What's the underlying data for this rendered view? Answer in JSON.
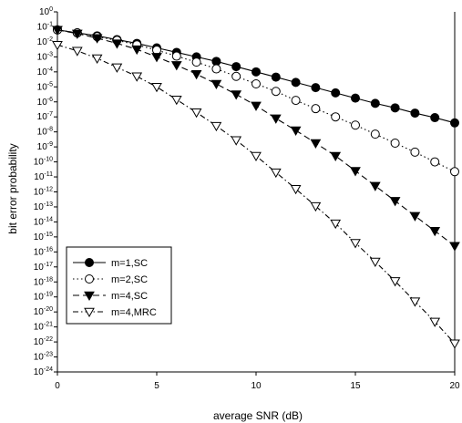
{
  "chart_data": {
    "type": "line",
    "title": "",
    "xlabel": "average SNR (dB)",
    "ylabel": "bit error probability",
    "xlim": [
      0,
      20
    ],
    "ylim": [
      -24,
      0
    ],
    "y_scale": "log",
    "grid": false,
    "legend_position": "bottom-left",
    "x": [
      0,
      1,
      2,
      3,
      4,
      5,
      6,
      7,
      8,
      9,
      10,
      11,
      12,
      13,
      14,
      15,
      16,
      17,
      18,
      19,
      20
    ],
    "x_ticks": [
      "0",
      "5",
      "10",
      "15",
      "20"
    ],
    "y_tick_exponents": [
      0,
      -1,
      -2,
      -3,
      -4,
      -5,
      -6,
      -7,
      -8,
      -9,
      -10,
      -11,
      -12,
      -13,
      -14,
      -15,
      -16,
      -17,
      -18,
      -19,
      -20,
      -21,
      -22,
      -23,
      -24
    ],
    "series": [
      {
        "name": "m=1,SC",
        "marker": "filled-circle",
        "line": "solid",
        "log10_values": [
          -1.2,
          -1.4,
          -1.6,
          -1.85,
          -2.1,
          -2.4,
          -2.7,
          -3.0,
          -3.3,
          -3.65,
          -4.0,
          -4.35,
          -4.7,
          -5.05,
          -5.4,
          -5.75,
          -6.1,
          -6.4,
          -6.75,
          -7.05,
          -7.4
        ]
      },
      {
        "name": "m=2,SC",
        "marker": "open-circle",
        "line": "dotted",
        "log10_values": [
          -1.2,
          -1.4,
          -1.65,
          -1.9,
          -2.2,
          -2.55,
          -2.95,
          -3.35,
          -3.8,
          -4.3,
          -4.8,
          -5.3,
          -5.9,
          -6.45,
          -7.0,
          -7.55,
          -8.15,
          -8.75,
          -9.35,
          -10.0,
          -10.65
        ]
      },
      {
        "name": "m=4,SC",
        "marker": "filled-triangle-down",
        "line": "dashed",
        "log10_values": [
          -1.2,
          -1.45,
          -1.75,
          -2.1,
          -2.5,
          -3.0,
          -3.55,
          -4.15,
          -4.8,
          -5.5,
          -6.25,
          -7.1,
          -7.9,
          -8.75,
          -9.6,
          -10.6,
          -11.6,
          -12.6,
          -13.6,
          -14.6,
          -15.6
        ]
      },
      {
        "name": "m=4,MRC",
        "marker": "open-triangle-down",
        "line": "dash-dot",
        "log10_values": [
          -2.2,
          -2.6,
          -3.1,
          -3.7,
          -4.3,
          -5.0,
          -5.85,
          -6.7,
          -7.6,
          -8.55,
          -9.6,
          -10.7,
          -11.8,
          -12.95,
          -14.1,
          -15.4,
          -16.65,
          -17.95,
          -19.3,
          -20.65,
          -22.1
        ]
      }
    ]
  }
}
